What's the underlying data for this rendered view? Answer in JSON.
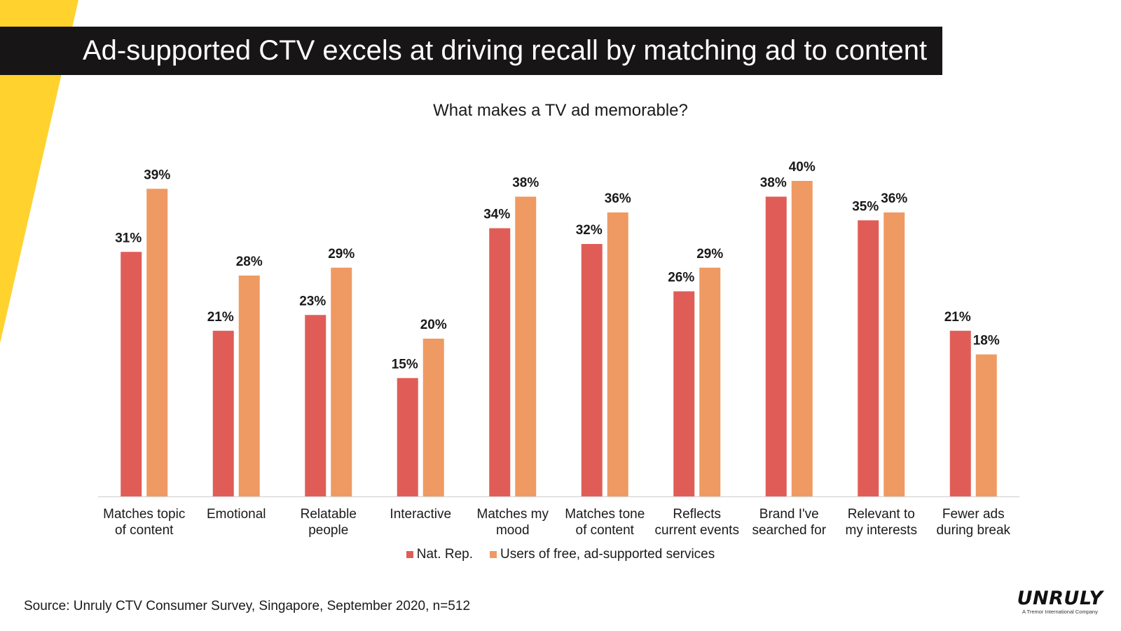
{
  "colors": {
    "accent_yellow": "#FFD22E",
    "title_bg": "#171515",
    "series_nat": "#E05D57",
    "series_users": "#EF9A62",
    "axis": "#D9D9D9"
  },
  "header": {
    "title": "Ad-supported CTV excels at driving recall by matching ad to content"
  },
  "chart_data": {
    "type": "bar",
    "title": "What makes a TV ad memorable?",
    "xlabel": "",
    "ylabel": "",
    "ylim": [
      0,
      40
    ],
    "grid": false,
    "legend_position": "bottom",
    "categories": [
      [
        "Matches topic",
        "of content"
      ],
      [
        "Emotional"
      ],
      [
        "Relatable",
        "people"
      ],
      [
        "Interactive"
      ],
      [
        "Matches my",
        "mood"
      ],
      [
        "Matches tone",
        "of content"
      ],
      [
        "Reflects",
        "current events"
      ],
      [
        "Brand I've",
        "searched for"
      ],
      [
        "Relevant to",
        "my interests"
      ],
      [
        "Fewer ads",
        "during break"
      ]
    ],
    "series": [
      {
        "name": "Nat. Rep.",
        "color": "#E05D57",
        "values": [
          31,
          21,
          23,
          15,
          34,
          32,
          26,
          38,
          35,
          21
        ]
      },
      {
        "name": "Users of free, ad-supported services",
        "color": "#EF9A62",
        "values": [
          39,
          28,
          29,
          20,
          38,
          36,
          29,
          40,
          36,
          18
        ]
      }
    ],
    "value_suffix": "%"
  },
  "footer": {
    "source": "Source: Unruly CTV Consumer Survey, Singapore, September 2020, n=512"
  },
  "logo": {
    "name": "UNRULY",
    "tagline": "A Tremor International Company"
  }
}
